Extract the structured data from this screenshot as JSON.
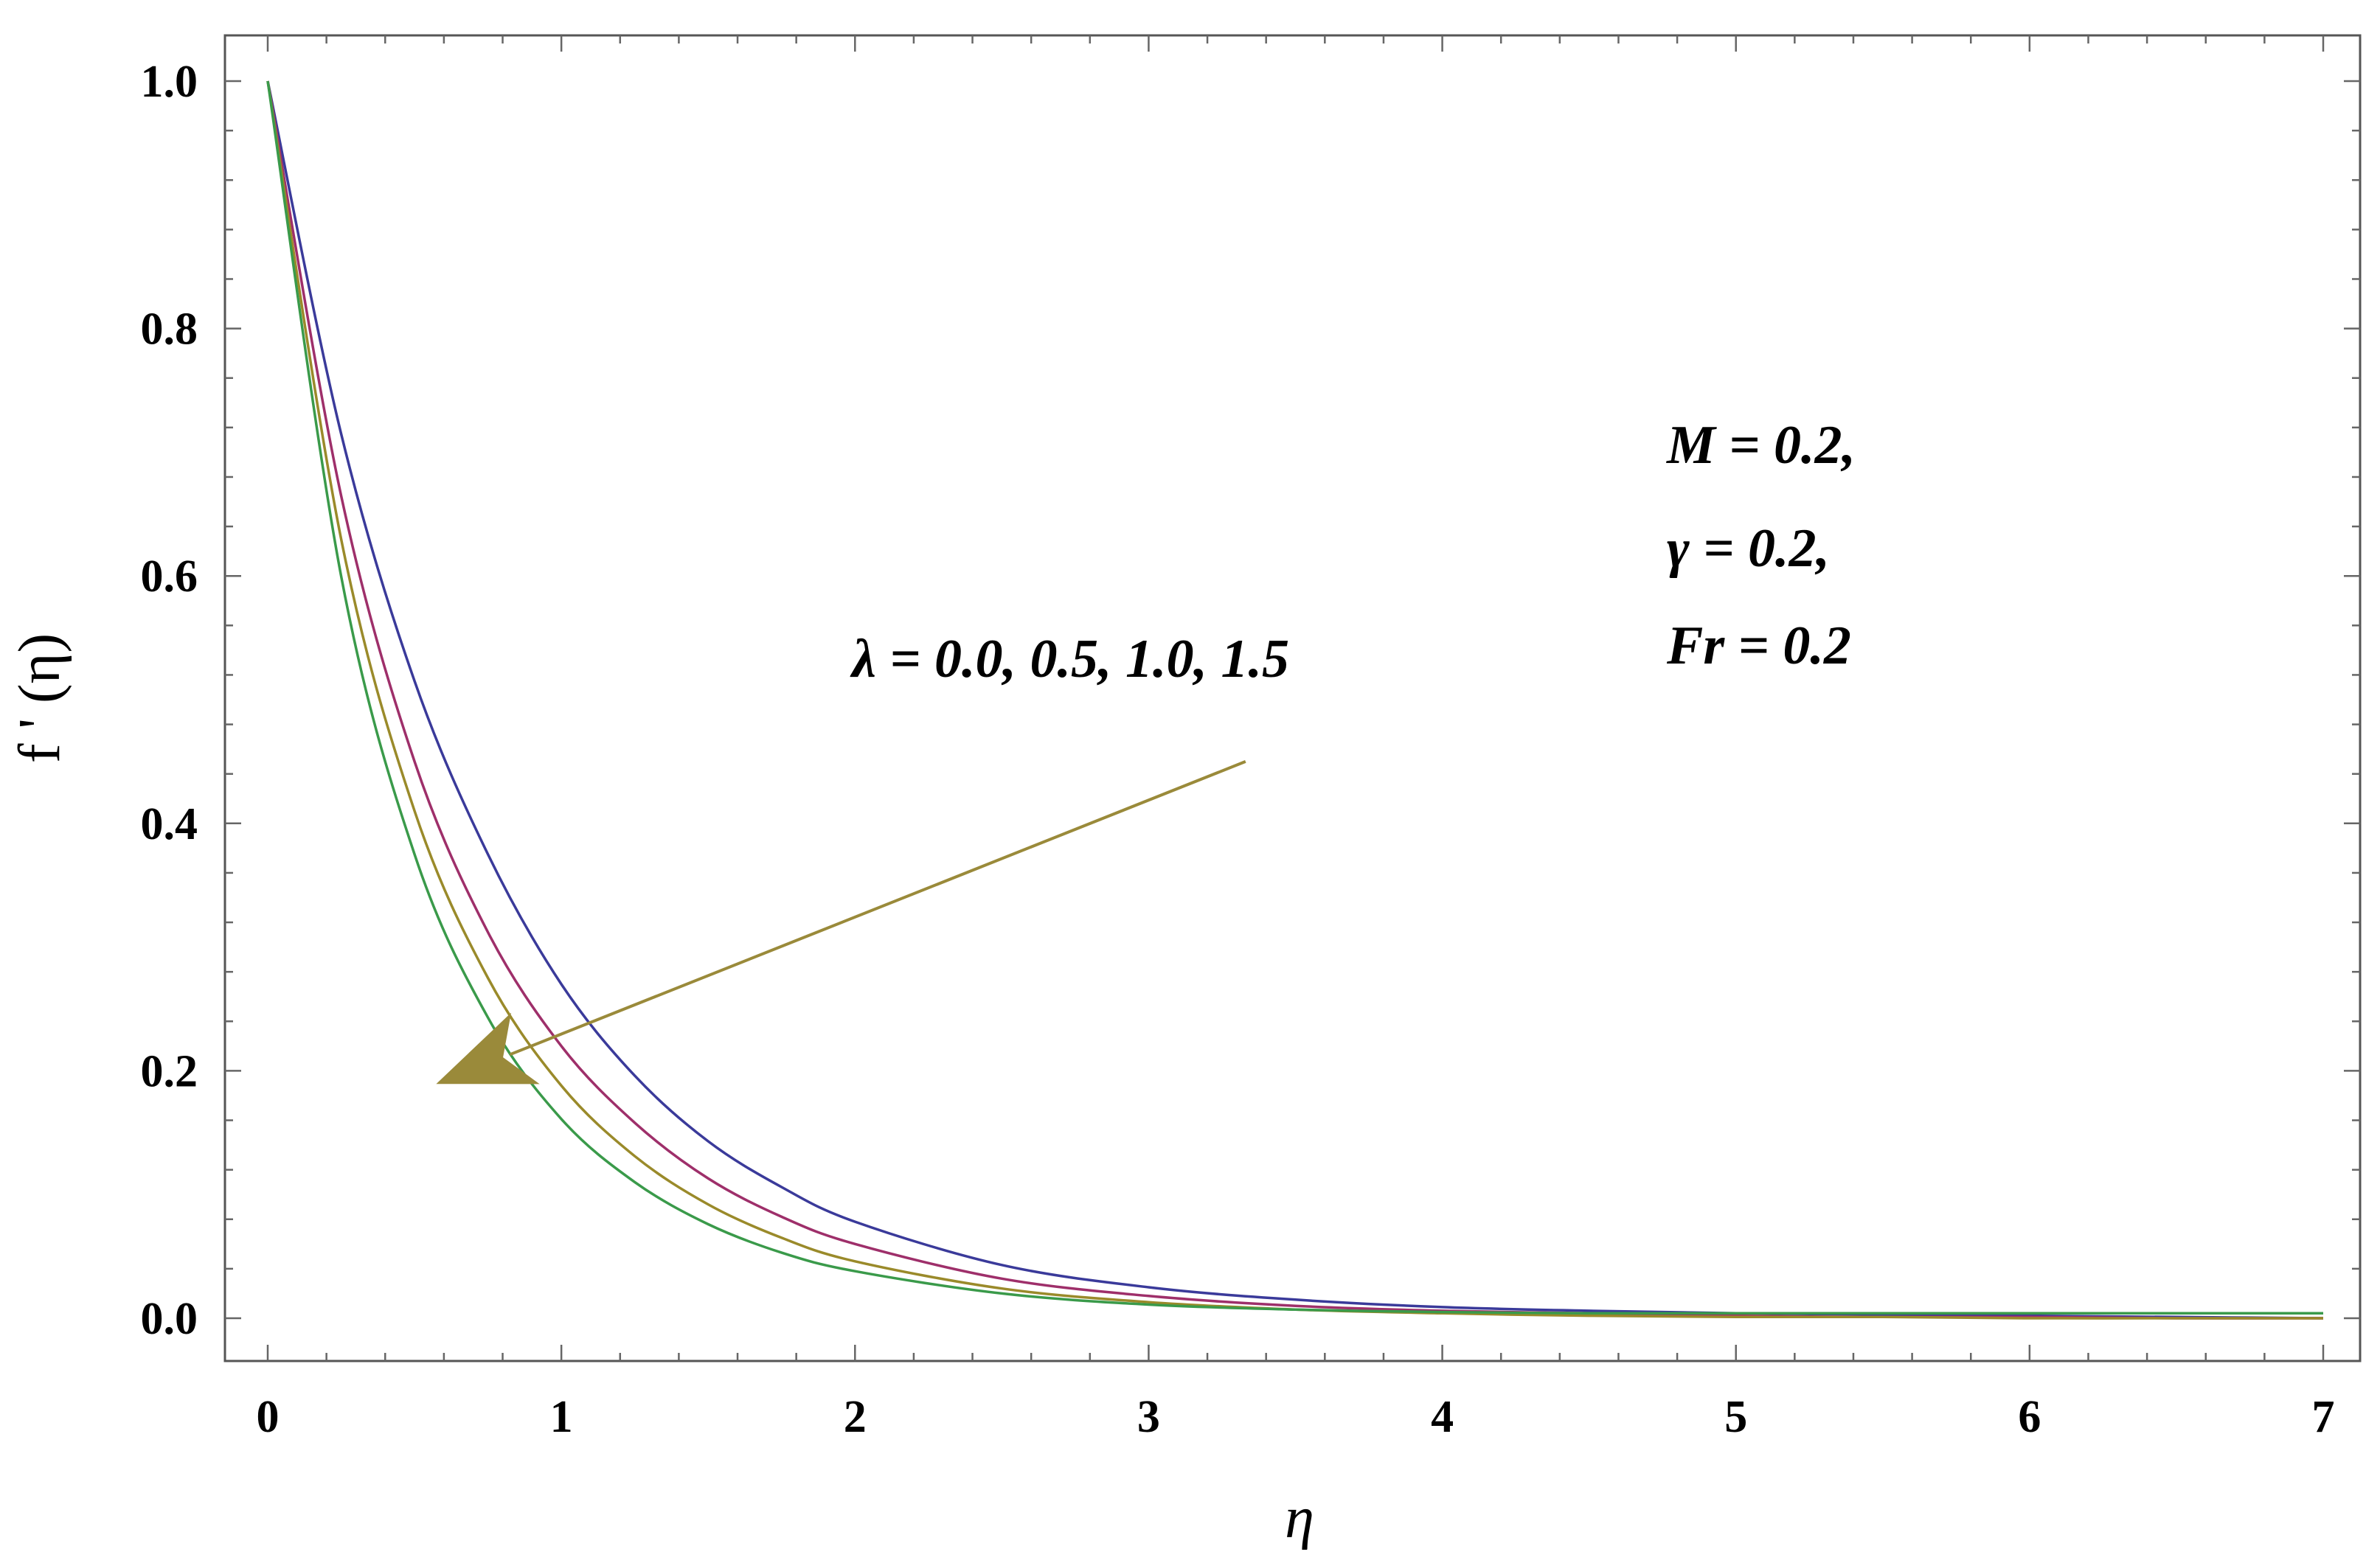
{
  "chart_data": {
    "type": "line",
    "xlabel": "η",
    "ylabel": "f ' (η)",
    "xlim": [
      0,
      7
    ],
    "ylim": [
      0,
      1
    ],
    "xticks": [
      "0",
      "1",
      "2",
      "3",
      "4",
      "5",
      "6",
      "7"
    ],
    "yticks": [
      "0.0",
      "0.2",
      "0.4",
      "0.6",
      "0.8",
      "1.0"
    ],
    "grid": false,
    "x": [
      0,
      0.25,
      0.5,
      0.75,
      1,
      1.25,
      1.5,
      1.75,
      2,
      2.5,
      3,
      3.5,
      4,
      4.5,
      5,
      5.5,
      6,
      6.5,
      7
    ],
    "series": [
      {
        "color": "#3a3a9a",
        "values": [
          1.0,
          0.715,
          0.515,
          0.375,
          0.27,
          0.196,
          0.143,
          0.106,
          0.078,
          0.043,
          0.025,
          0.015,
          0.009,
          0.006,
          0.004,
          0.003,
          0.002,
          0.001,
          0.0
        ]
      },
      {
        "color": "#9e2f6a",
        "values": [
          1.0,
          0.665,
          0.45,
          0.312,
          0.22,
          0.158,
          0.113,
          0.082,
          0.06,
          0.032,
          0.018,
          0.01,
          0.006,
          0.004,
          0.002,
          0.001,
          0.001,
          0.0,
          0.0
        ]
      },
      {
        "color": "#9a8a2a",
        "values": [
          1.0,
          0.63,
          0.41,
          0.275,
          0.188,
          0.131,
          0.092,
          0.065,
          0.046,
          0.024,
          0.013,
          0.007,
          0.004,
          0.002,
          0.001,
          0.001,
          0.0,
          0.0,
          0.0
        ]
      },
      {
        "color": "#3a9a4a",
        "values": [
          1.0,
          0.6,
          0.375,
          0.243,
          0.161,
          0.11,
          0.076,
          0.053,
          0.038,
          0.02,
          0.011,
          0.007,
          0.005,
          0.004,
          0.004,
          0.004,
          0.004,
          0.004,
          0.004
        ]
      }
    ],
    "annotations": {
      "lambda_label": "λ =  0.0,  0.5,  1.0,  1.5",
      "param_m": "M  =  0.2,",
      "param_gamma": "γ = 0.2,",
      "param_fr": "Fr = 0.2"
    },
    "arrow": {
      "from": [
        3.33,
        0.45
      ],
      "to": [
        0.58,
        0.19
      ],
      "color": "#9a8a3a"
    }
  }
}
